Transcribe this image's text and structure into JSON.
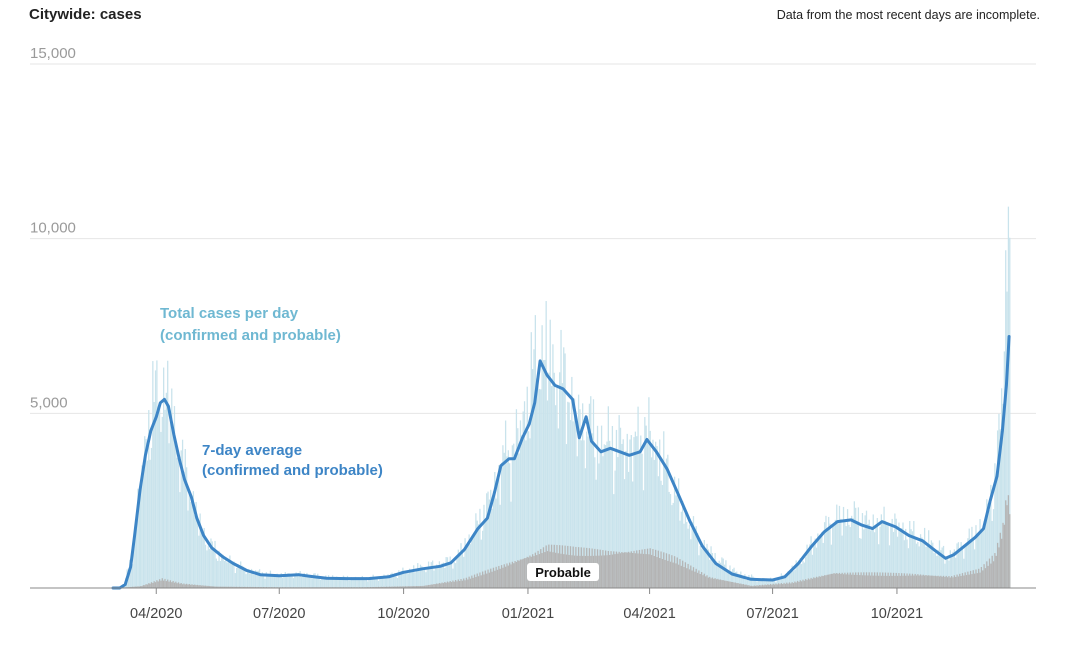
{
  "chart_title": "Citywide: cases",
  "note": "Data from the most recent days are incomplete.",
  "colors": {
    "total_bars": "#c9e3ec",
    "probable_bars": "#b4b4b4",
    "average_line": "#3d85c6",
    "total_label": "#6fb8d2",
    "grid": "#e6e6e6",
    "axis": "#888888"
  },
  "chart_data": {
    "type": "bar",
    "xlabel": "",
    "ylabel": "",
    "ylim": [
      0,
      15000
    ],
    "x_start": "2020-02-29",
    "x_end": "2022-01-03",
    "grid": true,
    "yticks": [
      {
        "value": 5000,
        "label": "5,000"
      },
      {
        "value": 10000,
        "label": "10,000"
      },
      {
        "value": 15000,
        "label": "15,000"
      }
    ],
    "xticks": [
      {
        "date": "2020-04-01",
        "label": "04/2020"
      },
      {
        "date": "2020-07-01",
        "label": "07/2020"
      },
      {
        "date": "2020-10-01",
        "label": "10/2020"
      },
      {
        "date": "2021-01-01",
        "label": "01/2021"
      },
      {
        "date": "2021-04-01",
        "label": "04/2021"
      },
      {
        "date": "2021-07-01",
        "label": "07/2021"
      },
      {
        "date": "2021-10-01",
        "label": "10/2021"
      }
    ],
    "annotations": {
      "total": [
        "Total cases per day",
        "(confirmed and probable)"
      ],
      "average": [
        "7-day average",
        "(confirmed and probable)"
      ],
      "probable": "Probable"
    },
    "series": [
      {
        "name": "7-day average (confirmed and probable)",
        "style": "line",
        "points": [
          [
            "2020-02-29",
            0
          ],
          [
            "2020-03-05",
            0
          ],
          [
            "2020-03-09",
            100
          ],
          [
            "2020-03-13",
            600
          ],
          [
            "2020-03-16",
            1500
          ],
          [
            "2020-03-20",
            2800
          ],
          [
            "2020-03-24",
            3800
          ],
          [
            "2020-03-28",
            4500
          ],
          [
            "2020-04-01",
            4900
          ],
          [
            "2020-04-04",
            5300
          ],
          [
            "2020-04-07",
            5400
          ],
          [
            "2020-04-10",
            5200
          ],
          [
            "2020-04-14",
            4400
          ],
          [
            "2020-04-18",
            3700
          ],
          [
            "2020-04-22",
            3100
          ],
          [
            "2020-04-27",
            2600
          ],
          [
            "2020-05-01",
            2000
          ],
          [
            "2020-05-06",
            1500
          ],
          [
            "2020-05-12",
            1150
          ],
          [
            "2020-05-20",
            900
          ],
          [
            "2020-05-28",
            700
          ],
          [
            "2020-06-07",
            500
          ],
          [
            "2020-06-17",
            380
          ],
          [
            "2020-07-01",
            350
          ],
          [
            "2020-07-15",
            380
          ],
          [
            "2020-07-25",
            330
          ],
          [
            "2020-08-05",
            280
          ],
          [
            "2020-08-20",
            270
          ],
          [
            "2020-09-05",
            270
          ],
          [
            "2020-09-20",
            320
          ],
          [
            "2020-10-01",
            450
          ],
          [
            "2020-10-15",
            550
          ],
          [
            "2020-10-28",
            620
          ],
          [
            "2020-11-05",
            720
          ],
          [
            "2020-11-15",
            1100
          ],
          [
            "2020-11-25",
            1700
          ],
          [
            "2020-12-02",
            2000
          ],
          [
            "2020-12-07",
            2700
          ],
          [
            "2020-12-12",
            3500
          ],
          [
            "2020-12-18",
            3700
          ],
          [
            "2020-12-22",
            3700
          ],
          [
            "2020-12-28",
            4300
          ],
          [
            "2021-01-02",
            4700
          ],
          [
            "2021-01-06",
            5300
          ],
          [
            "2021-01-10",
            6500
          ],
          [
            "2021-01-15",
            6100
          ],
          [
            "2021-01-21",
            5800
          ],
          [
            "2021-01-27",
            5700
          ],
          [
            "2021-02-03",
            5400
          ],
          [
            "2021-02-08",
            4300
          ],
          [
            "2021-02-13",
            4900
          ],
          [
            "2021-02-17",
            4200
          ],
          [
            "2021-02-24",
            3900
          ],
          [
            "2021-03-03",
            4000
          ],
          [
            "2021-03-10",
            3900
          ],
          [
            "2021-03-17",
            3800
          ],
          [
            "2021-03-25",
            3900
          ],
          [
            "2021-03-30",
            4250
          ],
          [
            "2021-04-06",
            3900
          ],
          [
            "2021-04-14",
            3400
          ],
          [
            "2021-04-22",
            2700
          ],
          [
            "2021-05-01",
            1900
          ],
          [
            "2021-05-10",
            1200
          ],
          [
            "2021-05-20",
            700
          ],
          [
            "2021-06-01",
            400
          ],
          [
            "2021-06-15",
            250
          ],
          [
            "2021-07-01",
            230
          ],
          [
            "2021-07-10",
            320
          ],
          [
            "2021-07-20",
            700
          ],
          [
            "2021-07-30",
            1200
          ],
          [
            "2021-08-08",
            1600
          ],
          [
            "2021-08-18",
            1900
          ],
          [
            "2021-08-28",
            1950
          ],
          [
            "2021-09-05",
            1800
          ],
          [
            "2021-09-13",
            1700
          ],
          [
            "2021-09-20",
            1900
          ],
          [
            "2021-09-30",
            1750
          ],
          [
            "2021-10-10",
            1500
          ],
          [
            "2021-10-20",
            1350
          ],
          [
            "2021-10-30",
            1050
          ],
          [
            "2021-11-06",
            850
          ],
          [
            "2021-11-12",
            950
          ],
          [
            "2021-11-20",
            1200
          ],
          [
            "2021-11-28",
            1450
          ],
          [
            "2021-12-04",
            1700
          ],
          [
            "2021-12-09",
            2500
          ],
          [
            "2021-12-14",
            3200
          ],
          [
            "2021-12-18",
            4500
          ],
          [
            "2021-12-21",
            5800
          ],
          [
            "2021-12-23",
            7200
          ]
        ]
      },
      {
        "name": "Total cases per day (confirmed and probable)",
        "style": "bars",
        "points": [
          [
            "2020-03-01",
            0
          ],
          [
            "2020-03-08",
            100
          ],
          [
            "2020-03-15",
            1300
          ],
          [
            "2020-03-22",
            3900
          ],
          [
            "2020-03-29",
            5500
          ],
          [
            "2020-04-05",
            6000
          ],
          [
            "2020-04-12",
            5200
          ],
          [
            "2020-04-19",
            3800
          ],
          [
            "2020-04-26",
            2900
          ],
          [
            "2020-05-03",
            1800
          ],
          [
            "2020-05-10",
            1300
          ],
          [
            "2020-05-17",
            1000
          ],
          [
            "2020-05-24",
            800
          ],
          [
            "2020-06-07",
            550
          ],
          [
            "2020-06-21",
            420
          ],
          [
            "2020-07-05",
            380
          ],
          [
            "2020-07-19",
            420
          ],
          [
            "2020-08-02",
            330
          ],
          [
            "2020-08-16",
            300
          ],
          [
            "2020-08-30",
            300
          ],
          [
            "2020-09-13",
            320
          ],
          [
            "2020-09-27",
            450
          ],
          [
            "2020-10-11",
            600
          ],
          [
            "2020-10-25",
            700
          ],
          [
            "2020-11-08",
            850
          ],
          [
            "2020-11-22",
            1700
          ],
          [
            "2020-12-06",
            2900
          ],
          [
            "2020-12-13",
            3900
          ],
          [
            "2020-12-20",
            4100
          ],
          [
            "2020-12-27",
            4800
          ],
          [
            "2021-01-03",
            6200
          ],
          [
            "2021-01-10",
            7200
          ],
          [
            "2021-01-17",
            6700
          ],
          [
            "2021-01-24",
            6300
          ],
          [
            "2021-01-31",
            5900
          ],
          [
            "2021-02-07",
            4800
          ],
          [
            "2021-02-14",
            5000
          ],
          [
            "2021-02-21",
            4300
          ],
          [
            "2021-02-28",
            4400
          ],
          [
            "2021-03-07",
            4300
          ],
          [
            "2021-03-14",
            4200
          ],
          [
            "2021-03-21",
            4300
          ],
          [
            "2021-03-28",
            4700
          ],
          [
            "2021-04-04",
            4300
          ],
          [
            "2021-04-11",
            3700
          ],
          [
            "2021-04-18",
            3000
          ],
          [
            "2021-04-25",
            2300
          ],
          [
            "2021-05-02",
            1800
          ],
          [
            "2021-05-09",
            1300
          ],
          [
            "2021-05-23",
            800
          ],
          [
            "2021-06-06",
            420
          ],
          [
            "2021-06-20",
            270
          ],
          [
            "2021-07-04",
            260
          ],
          [
            "2021-07-18",
            650
          ],
          [
            "2021-08-01",
            1400
          ],
          [
            "2021-08-15",
            2050
          ],
          [
            "2021-08-29",
            2150
          ],
          [
            "2021-09-12",
            1900
          ],
          [
            "2021-09-26",
            1950
          ],
          [
            "2021-10-10",
            1650
          ],
          [
            "2021-10-24",
            1400
          ],
          [
            "2021-11-07",
            950
          ],
          [
            "2021-11-21",
            1350
          ],
          [
            "2021-12-05",
            2000
          ],
          [
            "2021-12-12",
            3300
          ],
          [
            "2021-12-16",
            4800
          ],
          [
            "2021-12-19",
            7600
          ],
          [
            "2021-12-21",
            10500
          ],
          [
            "2021-12-22",
            11500
          ],
          [
            "2021-12-23",
            9400
          ]
        ]
      },
      {
        "name": "Probable",
        "style": "bars",
        "points": [
          [
            "2020-03-01",
            0
          ],
          [
            "2020-03-20",
            50
          ],
          [
            "2020-04-05",
            250
          ],
          [
            "2020-04-20",
            120
          ],
          [
            "2020-05-15",
            40
          ],
          [
            "2020-07-01",
            20
          ],
          [
            "2020-09-01",
            20
          ],
          [
            "2020-10-15",
            60
          ],
          [
            "2020-11-15",
            250
          ],
          [
            "2020-12-15",
            650
          ],
          [
            "2021-01-05",
            950
          ],
          [
            "2021-01-15",
            1150
          ],
          [
            "2021-02-05",
            1050
          ],
          [
            "2021-03-01",
            1000
          ],
          [
            "2021-04-01",
            1050
          ],
          [
            "2021-04-20",
            800
          ],
          [
            "2021-05-15",
            300
          ],
          [
            "2021-06-15",
            60
          ],
          [
            "2021-07-15",
            150
          ],
          [
            "2021-08-15",
            420
          ],
          [
            "2021-09-15",
            400
          ],
          [
            "2021-10-15",
            380
          ],
          [
            "2021-11-10",
            320
          ],
          [
            "2021-12-01",
            500
          ],
          [
            "2021-12-12",
            900
          ],
          [
            "2021-12-18",
            1700
          ],
          [
            "2021-12-21",
            2600
          ],
          [
            "2021-12-23",
            2300
          ]
        ]
      }
    ]
  }
}
